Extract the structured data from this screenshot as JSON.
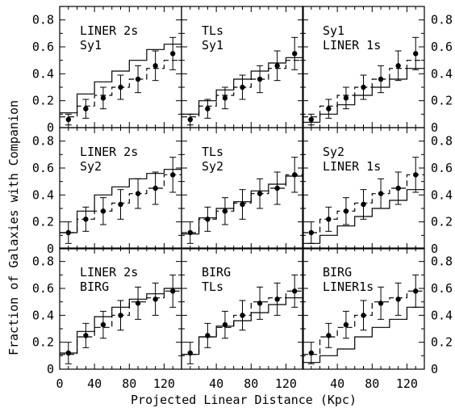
{
  "chart_data": {
    "type": "step-with-errorbars",
    "xlabel": "Projected Linear Distance (Kpc)",
    "ylabel": "Fraction of Galaxies with Companion",
    "xlim": [
      0,
      140
    ],
    "ylim": [
      0,
      0.9
    ],
    "x_ticks_left_col": [
      "0",
      "40",
      "80",
      "120"
    ],
    "x_ticks_mid_col": [
      "40",
      "80",
      "120"
    ],
    "x_ticks_right_col": [
      "40",
      "80",
      "120"
    ],
    "y_ticks": [
      "0",
      "0.2",
      "0.4",
      "0.6",
      "0.8"
    ],
    "y_ticks_bottom_row": [
      "0",
      "0.2",
      "0.4",
      "0.6",
      "0.8"
    ],
    "bin_edges": [
      0,
      20,
      40,
      60,
      80,
      100,
      120,
      140
    ],
    "point_x": [
      10,
      30,
      50,
      70,
      90,
      110,
      130
    ],
    "panels": [
      {
        "row": 0,
        "col": 0,
        "labels": [
          "LINER 2s",
          "Sy1"
        ],
        "points": [
          0.06,
          0.14,
          0.22,
          0.3,
          0.36,
          0.46,
          0.55
        ],
        "errors": [
          0.04,
          0.07,
          0.08,
          0.09,
          0.1,
          0.11,
          0.12
        ],
        "dashed": [
          0.08,
          0.16,
          0.24,
          0.3,
          0.36,
          0.44,
          0.5
        ],
        "solid": [
          0.11,
          0.25,
          0.34,
          0.42,
          0.5,
          0.58,
          0.62
        ]
      },
      {
        "row": 0,
        "col": 1,
        "labels": [
          "TLs",
          "Sy1"
        ],
        "points": [
          0.06,
          0.14,
          0.22,
          0.3,
          0.36,
          0.46,
          0.55
        ],
        "errors": [
          0.04,
          0.07,
          0.08,
          0.09,
          0.1,
          0.11,
          0.12
        ],
        "dashed": [
          0.08,
          0.16,
          0.24,
          0.3,
          0.36,
          0.44,
          0.5
        ],
        "solid": [
          0.1,
          0.2,
          0.28,
          0.36,
          0.42,
          0.48,
          0.52
        ]
      },
      {
        "row": 0,
        "col": 2,
        "labels": [
          "Sy1",
          "LINER 1s"
        ],
        "points": [
          0.06,
          0.14,
          0.22,
          0.3,
          0.36,
          0.46,
          0.55
        ],
        "errors": [
          0.04,
          0.07,
          0.08,
          0.09,
          0.1,
          0.11,
          0.12
        ],
        "dashed": [
          0.08,
          0.16,
          0.24,
          0.3,
          0.36,
          0.44,
          0.5
        ],
        "solid": [
          0.04,
          0.1,
          0.17,
          0.24,
          0.3,
          0.36,
          0.44
        ]
      },
      {
        "row": 1,
        "col": 0,
        "labels": [
          "LINER 2s",
          "Sy2"
        ],
        "points": [
          0.12,
          0.22,
          0.28,
          0.33,
          0.41,
          0.45,
          0.55
        ],
        "errors": [
          0.08,
          0.09,
          0.1,
          0.11,
          0.11,
          0.12,
          0.13
        ],
        "dashed": [
          0.12,
          0.22,
          0.28,
          0.34,
          0.41,
          0.45,
          0.55
        ],
        "solid": [
          0.12,
          0.28,
          0.4,
          0.46,
          0.52,
          0.56,
          0.59
        ]
      },
      {
        "row": 1,
        "col": 1,
        "labels": [
          "TLs",
          "Sy2"
        ],
        "points": [
          0.12,
          0.22,
          0.28,
          0.33,
          0.41,
          0.45,
          0.55
        ],
        "errors": [
          0.08,
          0.09,
          0.1,
          0.11,
          0.11,
          0.12,
          0.13
        ],
        "dashed": [
          0.12,
          0.22,
          0.28,
          0.34,
          0.41,
          0.45,
          0.55
        ],
        "solid": [
          0.11,
          0.23,
          0.3,
          0.35,
          0.43,
          0.48,
          0.54
        ]
      },
      {
        "row": 1,
        "col": 2,
        "labels": [
          "Sy2",
          "LINER 1s"
        ],
        "points": [
          0.12,
          0.22,
          0.28,
          0.33,
          0.41,
          0.45,
          0.55
        ],
        "errors": [
          0.08,
          0.09,
          0.1,
          0.11,
          0.11,
          0.12,
          0.13
        ],
        "dashed": [
          0.12,
          0.22,
          0.28,
          0.34,
          0.41,
          0.45,
          0.55
        ],
        "solid": [
          0.04,
          0.1,
          0.17,
          0.24,
          0.3,
          0.36,
          0.44
        ]
      },
      {
        "row": 2,
        "col": 0,
        "labels": [
          "LINER 2s",
          "BIRG"
        ],
        "points": [
          0.12,
          0.25,
          0.33,
          0.4,
          0.49,
          0.52,
          0.58
        ],
        "errors": [
          0.08,
          0.09,
          0.1,
          0.11,
          0.12,
          0.12,
          0.12
        ],
        "dashed": [
          0.11,
          0.24,
          0.31,
          0.4,
          0.5,
          0.53,
          0.58
        ],
        "solid": [
          0.12,
          0.28,
          0.39,
          0.46,
          0.52,
          0.56,
          0.6
        ]
      },
      {
        "row": 2,
        "col": 1,
        "labels": [
          "BIRG",
          "TLs"
        ],
        "points": [
          0.12,
          0.25,
          0.33,
          0.4,
          0.49,
          0.52,
          0.58
        ],
        "errors": [
          0.08,
          0.09,
          0.1,
          0.11,
          0.12,
          0.12,
          0.12
        ],
        "dashed": [
          0.11,
          0.24,
          0.31,
          0.4,
          0.5,
          0.53,
          0.58
        ],
        "solid": [
          0.11,
          0.24,
          0.32,
          0.36,
          0.42,
          0.48,
          0.53
        ]
      },
      {
        "row": 2,
        "col": 2,
        "labels": [
          "BIRG",
          "LINER1s"
        ],
        "points": [
          0.12,
          0.25,
          0.33,
          0.4,
          0.49,
          0.52,
          0.58
        ],
        "errors": [
          0.08,
          0.09,
          0.1,
          0.11,
          0.12,
          0.12,
          0.12
        ],
        "dashed": [
          0.11,
          0.24,
          0.31,
          0.4,
          0.5,
          0.53,
          0.58
        ],
        "solid": [
          0.05,
          0.1,
          0.15,
          0.24,
          0.31,
          0.37,
          0.46
        ]
      }
    ]
  }
}
